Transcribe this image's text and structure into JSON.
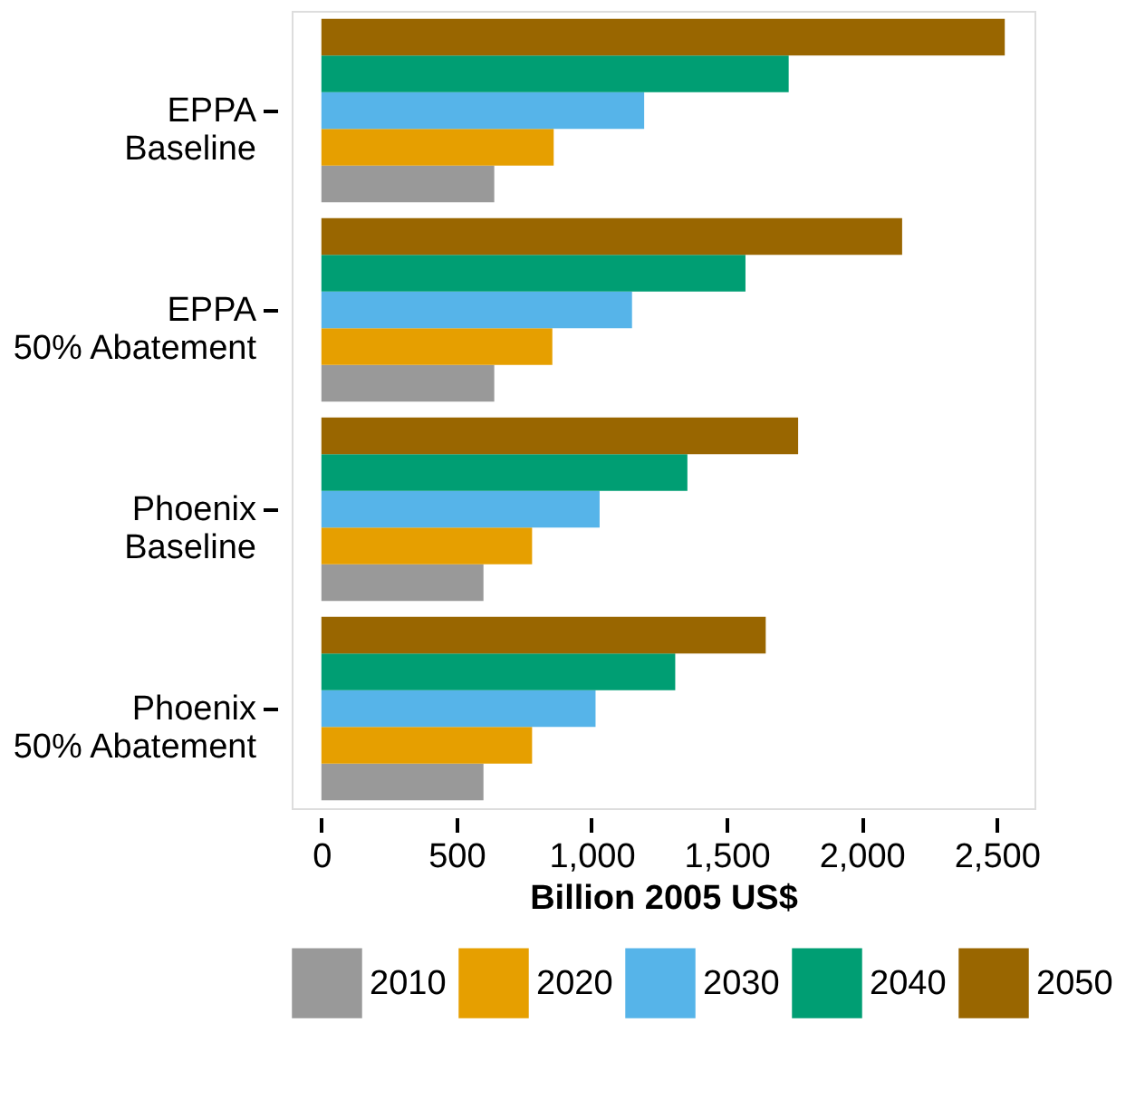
{
  "chart_data": {
    "type": "bar",
    "orientation": "horizontal",
    "xlabel": "Billion 2005 US$",
    "categories": [
      "EPPA\nBaseline",
      "EPPA\n50% Abatement",
      "Phoenix\nBaseline",
      "Phoenix\n50% Abatement"
    ],
    "series": [
      {
        "name": "2010",
        "color": "#999999",
        "values": [
          640,
          640,
          600,
          600
        ]
      },
      {
        "name": "2020",
        "color": "#e69f00",
        "values": [
          860,
          855,
          780,
          780
        ]
      },
      {
        "name": "2030",
        "color": "#56b4e9",
        "values": [
          1195,
          1150,
          1030,
          1015
        ]
      },
      {
        "name": "2040",
        "color": "#009e73",
        "values": [
          1730,
          1570,
          1355,
          1310
        ]
      },
      {
        "name": "2050",
        "color": "#996600",
        "values": [
          2530,
          2150,
          1765,
          1645
        ]
      }
    ],
    "xlim": [
      -110,
      2640
    ],
    "xticks": [
      {
        "value": 0,
        "label": "0"
      },
      {
        "value": 500,
        "label": "500"
      },
      {
        "value": 1000,
        "label": "1,000"
      },
      {
        "value": 1500,
        "label": "1,500"
      },
      {
        "value": 2000,
        "label": "2,000"
      },
      {
        "value": 2500,
        "label": "2,500"
      }
    ],
    "grid": false,
    "legend": "bottom"
  }
}
